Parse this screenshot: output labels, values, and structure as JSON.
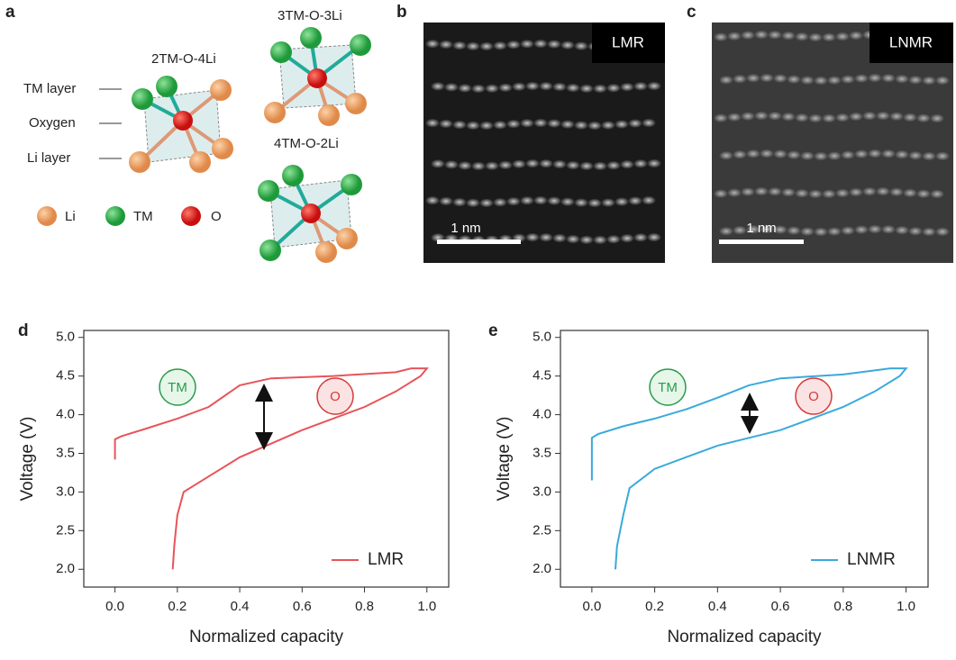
{
  "panels": {
    "a": {
      "label": "a",
      "structures": [
        "2TM-O-4Li",
        "3TM-O-3Li",
        "4TM-O-2Li"
      ],
      "layers": [
        "TM layer",
        "Oxygen",
        "Li layer"
      ],
      "legend": [
        "Li",
        "TM",
        "O"
      ]
    },
    "b": {
      "label": "b",
      "tag": "LMR",
      "scale": "1 nm"
    },
    "c": {
      "label": "c",
      "tag": "LNMR",
      "scale": "1 nm"
    },
    "d": {
      "label": "d"
    },
    "e": {
      "label": "e"
    }
  },
  "chart_data": [
    {
      "type": "line",
      "xlabel": "Normalized capacity",
      "ylabel": "Voltage (V)",
      "x": [
        0,
        0,
        0.02,
        0.1,
        0.2,
        0.3,
        0.4,
        0.5,
        0.7,
        0.9,
        0.95,
        1.0,
        0.98,
        0.9,
        0.8,
        0.6,
        0.4,
        0.3,
        0.22,
        0.2,
        0.19,
        0.185
      ],
      "series": [
        {
          "name": "LMR",
          "color": "#e8545a",
          "values": [
            3.42,
            3.68,
            3.72,
            3.82,
            3.95,
            4.1,
            4.38,
            4.47,
            4.5,
            4.55,
            4.6,
            4.6,
            4.5,
            4.3,
            4.1,
            3.8,
            3.45,
            3.2,
            3.0,
            2.7,
            2.3,
            2.0
          ]
        }
      ],
      "annotations": [
        "TM",
        "O"
      ],
      "xlim": [
        -0.1,
        1.07
      ],
      "ylim": [
        1.77,
        5.09
      ],
      "xticks": [
        {
          "value": 0,
          "label": "0.0"
        },
        0.2,
        0.4,
        0.6,
        0.8,
        {
          "value": 1,
          "label": "1.0"
        }
      ],
      "yticks": [
        {
          "value": 2,
          "label": "2.0"
        },
        2.5,
        {
          "value": 3,
          "label": "3.0"
        },
        3.5,
        {
          "value": 4,
          "label": "4.0"
        },
        4.5,
        {
          "value": 5,
          "label": "5.0"
        }
      ],
      "legend": "lower right"
    },
    {
      "type": "line",
      "xlabel": "Normalized capacity",
      "ylabel": "Voltage (V)",
      "x": [
        0,
        0,
        0.02,
        0.1,
        0.2,
        0.3,
        0.4,
        0.5,
        0.6,
        0.8,
        0.95,
        1.0,
        0.98,
        0.9,
        0.8,
        0.6,
        0.4,
        0.2,
        0.12,
        0.1,
        0.08,
        0.075
      ],
      "series": [
        {
          "name": "LNMR",
          "color": "#3aa9dc",
          "values": [
            3.15,
            3.7,
            3.75,
            3.85,
            3.95,
            4.07,
            4.22,
            4.38,
            4.47,
            4.52,
            4.6,
            4.6,
            4.5,
            4.3,
            4.1,
            3.8,
            3.6,
            3.3,
            3.05,
            2.7,
            2.3,
            2.0
          ]
        }
      ],
      "annotations": [
        "TM",
        "O"
      ],
      "xlim": [
        -0.1,
        1.07
      ],
      "ylim": [
        1.77,
        5.09
      ],
      "xticks": [
        {
          "value": 0,
          "label": "0.0"
        },
        0.2,
        0.4,
        0.6,
        0.8,
        {
          "value": 1,
          "label": "1.0"
        }
      ],
      "yticks": [
        {
          "value": 2,
          "label": "2.0"
        },
        2.5,
        {
          "value": 3,
          "label": "3.0"
        },
        3.5,
        {
          "value": 4,
          "label": "4.0"
        },
        4.5,
        {
          "value": 5,
          "label": "5.0"
        }
      ],
      "legend": "lower right"
    }
  ]
}
